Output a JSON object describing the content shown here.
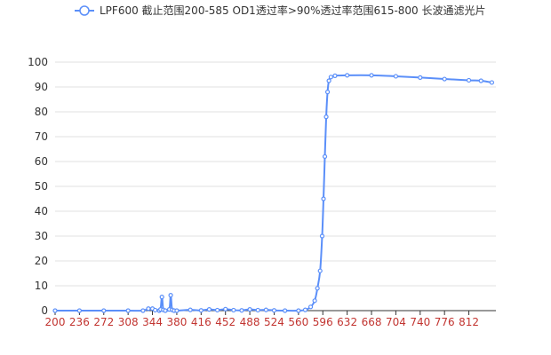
{
  "chart_data": {
    "type": "line",
    "legend": {
      "position": "top-center",
      "entries": [
        "LPF600 截止范围200-585 OD1透过率>90%透过率范围615-800 长波通滤光片"
      ]
    },
    "colors": {
      "series": "#5b8ff9",
      "grid": "#e0e0e0",
      "axis": "#333333",
      "xtick": "#c23531"
    },
    "xlim": [
      200,
      852
    ],
    "ylim": [
      0,
      100
    ],
    "yticks": [
      0,
      10,
      20,
      30,
      40,
      50,
      60,
      70,
      80,
      90,
      100
    ],
    "xticks": [
      200,
      236,
      272,
      308,
      344,
      380,
      416,
      452,
      488,
      524,
      560,
      596,
      632,
      668,
      704,
      740,
      776,
      812
    ],
    "grid": true,
    "series": [
      {
        "name": "LPF600 截止范围200-585 OD1透过率>90%透过率范围615-800 长波通滤光片",
        "points": [
          [
            200,
            0
          ],
          [
            236,
            0
          ],
          [
            272,
            0
          ],
          [
            308,
            0
          ],
          [
            330,
            0
          ],
          [
            338,
            0.8
          ],
          [
            344,
            0.8
          ],
          [
            348,
            0.2
          ],
          [
            354,
            0
          ],
          [
            356,
            0.5
          ],
          [
            358,
            5.5
          ],
          [
            360,
            0.3
          ],
          [
            363,
            0
          ],
          [
            369,
            0.5
          ],
          [
            371,
            6.2
          ],
          [
            373,
            0.3
          ],
          [
            376,
            0
          ],
          [
            380,
            0
          ],
          [
            400,
            0.3
          ],
          [
            416,
            0.1
          ],
          [
            428,
            0.5
          ],
          [
            440,
            0.2
          ],
          [
            452,
            0.6
          ],
          [
            464,
            0.2
          ],
          [
            476,
            0.1
          ],
          [
            488,
            0.5
          ],
          [
            500,
            0.2
          ],
          [
            512,
            0.3
          ],
          [
            524,
            0.1
          ],
          [
            540,
            0
          ],
          [
            560,
            0
          ],
          [
            570,
            0.3
          ],
          [
            578,
            1.5
          ],
          [
            584,
            4
          ],
          [
            588,
            9
          ],
          [
            592,
            16
          ],
          [
            595,
            30
          ],
          [
            597,
            45
          ],
          [
            599,
            62
          ],
          [
            601,
            78
          ],
          [
            603,
            88
          ],
          [
            605,
            92.5
          ],
          [
            608,
            94
          ],
          [
            614,
            94.5
          ],
          [
            632,
            94.7
          ],
          [
            668,
            94.7
          ],
          [
            704,
            94.3
          ],
          [
            740,
            93.8
          ],
          [
            776,
            93.2
          ],
          [
            812,
            92.7
          ],
          [
            830,
            92.5
          ],
          [
            846,
            91.8
          ]
        ]
      }
    ]
  }
}
